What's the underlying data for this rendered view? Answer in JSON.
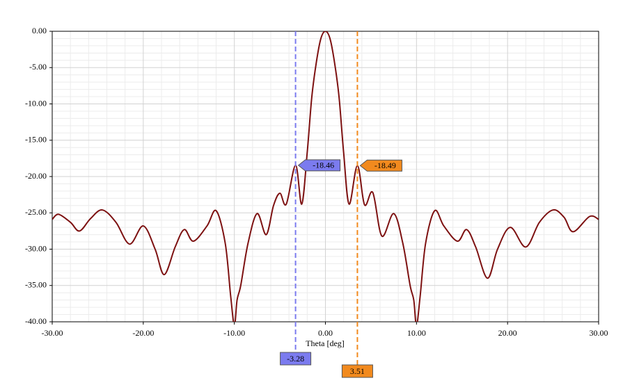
{
  "chart_data": {
    "type": "line",
    "x_label": "Theta [deg]",
    "x": [
      -30,
      -29.3,
      -28,
      -27,
      -25.8,
      -24.5,
      -23,
      -21.5,
      -20,
      -18.7,
      -17.7,
      -16.5,
      -15.5,
      -14.5,
      -13,
      -12,
      -11,
      -10.4,
      -10,
      -9.7,
      -9.3,
      -8.5,
      -7.5,
      -6.5,
      -5.7,
      -5,
      -4.3,
      -3.28,
      -2.6,
      -2,
      -1.5,
      -1,
      -0.5,
      0,
      0.5,
      1,
      1.5,
      2,
      2.6,
      3.51,
      4.3,
      5.2,
      6.2,
      7.5,
      8.5,
      9.3,
      9.7,
      10,
      10.4,
      11,
      12,
      13,
      14.5,
      15.5,
      16.5,
      17.8,
      18.9,
      20.3,
      22,
      23.5,
      25,
      26.2,
      27.2,
      29,
      30
    ],
    "values": [
      -25.9,
      -25.2,
      -26.3,
      -27.5,
      -25.8,
      -24.6,
      -26.3,
      -29.3,
      -26.8,
      -30.0,
      -33.5,
      -29.7,
      -27.3,
      -28.9,
      -26.8,
      -24.7,
      -29.2,
      -36.5,
      -40.5,
      -37.0,
      -35.0,
      -29.2,
      -25.1,
      -28.0,
      -24.0,
      -22.3,
      -23.8,
      -18.46,
      -23.8,
      -16.7,
      -9.1,
      -4.3,
      -1.0,
      0,
      -1.0,
      -4.3,
      -9.1,
      -16.7,
      -23.8,
      -18.49,
      -23.9,
      -22.2,
      -28.2,
      -25.1,
      -29.2,
      -35.0,
      -37.0,
      -40.5,
      -36.5,
      -29.2,
      -24.7,
      -26.8,
      -28.9,
      -27.3,
      -29.7,
      -34.0,
      -30.0,
      -27.0,
      -29.7,
      -26.3,
      -24.6,
      -25.6,
      -27.6,
      -25.5,
      -25.9
    ],
    "color": "#7d1111",
    "xlim": [
      -30,
      30
    ],
    "ylim": [
      -40,
      0
    ],
    "xticks": [
      {
        "value": -30,
        "label": "-30.00"
      },
      {
        "value": -20,
        "label": "-20.00"
      },
      {
        "value": -10,
        "label": "-10.00"
      },
      {
        "value": 0,
        "label": "0.00"
      },
      {
        "value": 10,
        "label": "10.00"
      },
      {
        "value": 20,
        "label": "20.00"
      },
      {
        "value": 30,
        "label": "30.00"
      }
    ],
    "yticks": [
      {
        "value": 0,
        "label": "0.00"
      },
      {
        "value": -5,
        "label": "-5.00"
      },
      {
        "value": -10,
        "label": "-10.00"
      },
      {
        "value": -15,
        "label": "-15.00"
      },
      {
        "value": -20,
        "label": "-20.00"
      },
      {
        "value": -25,
        "label": "-25.00"
      },
      {
        "value": -30,
        "label": "-30.00"
      },
      {
        "value": -35,
        "label": "-35.00"
      },
      {
        "value": -40,
        "label": "-40.00"
      }
    ],
    "grid": true,
    "markers": [
      {
        "x": -3.28,
        "y": -18.46,
        "color": "#7b7bef"
      },
      {
        "x": 3.51,
        "y": -18.49,
        "color": "#f28a1e"
      }
    ]
  }
}
